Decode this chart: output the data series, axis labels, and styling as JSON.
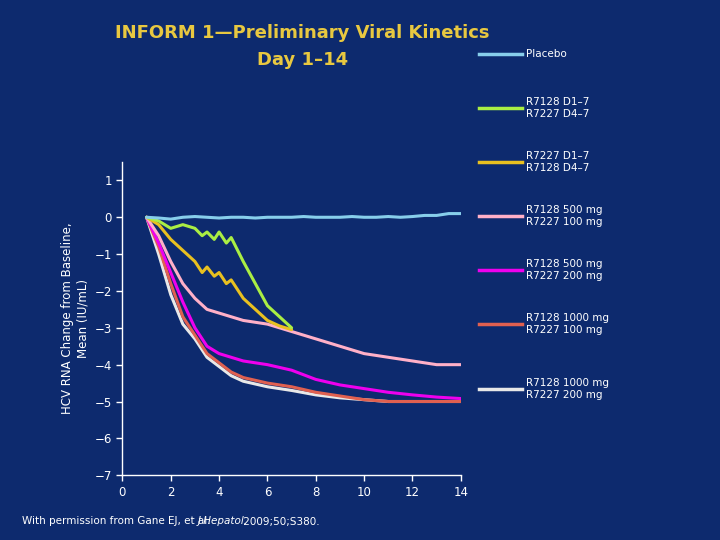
{
  "title_line1": "INFORM 1—Preliminary Viral Kinetics",
  "title_line2": "Day 1–14",
  "ylabel": "HCV RNA Change from Baseline,\nMean (IU/mL)",
  "background_color": "#0d2a6e",
  "title_color": "#e8c840",
  "axis_color": "#ffffff",
  "text_color": "#ffffff",
  "xlim": [
    0,
    14
  ],
  "ylim": [
    -7,
    1.5
  ],
  "xticks": [
    0,
    2,
    4,
    6,
    8,
    10,
    12,
    14
  ],
  "yticks": [
    1,
    0,
    -1,
    -2,
    -3,
    -4,
    -5,
    -6,
    -7
  ],
  "footnote_plain": "With permission from Gane EJ, et al. ",
  "footnote_italic": "J Hepatol.",
  "footnote_plain2": " 2009;50;S380.",
  "series": {
    "placebo": {
      "color": "#87ceeb",
      "label": "Placebo",
      "x": [
        1,
        1.5,
        2,
        2.5,
        3,
        3.5,
        4,
        4.5,
        5,
        5.5,
        6,
        6.5,
        7,
        7.5,
        8,
        8.5,
        9,
        9.5,
        10,
        10.5,
        11,
        11.5,
        12,
        12.5,
        13,
        13.5,
        14
      ],
      "y": [
        0.0,
        -0.02,
        -0.05,
        0.0,
        0.02,
        0.0,
        -0.02,
        0.0,
        0.0,
        -0.02,
        0.0,
        0.0,
        0.0,
        0.02,
        0.0,
        0.0,
        0.0,
        0.02,
        0.0,
        0.0,
        0.02,
        0.0,
        0.02,
        0.05,
        0.05,
        0.1,
        0.1
      ]
    },
    "r7128_d1_7_r7227_d4_7": {
      "color": "#aaee44",
      "label": "R7128 D1–7\nR7227 D4–7",
      "x": [
        1,
        1.5,
        2,
        2.5,
        3,
        3.3,
        3.5,
        3.8,
        4,
        4.3,
        4.5,
        5,
        5.5,
        6,
        6.5,
        7
      ],
      "y": [
        0,
        -0.1,
        -0.3,
        -0.2,
        -0.3,
        -0.5,
        -0.4,
        -0.6,
        -0.4,
        -0.7,
        -0.55,
        -1.2,
        -1.8,
        -2.4,
        -2.7,
        -3.0
      ]
    },
    "r7227_d1_7_r7128_d4_7": {
      "color": "#e8c020",
      "label": "R7227 D1–7\nR7128 D4–7",
      "x": [
        1,
        1.5,
        2,
        2.5,
        3,
        3.3,
        3.5,
        3.8,
        4,
        4.3,
        4.5,
        5,
        5.5,
        6,
        6.5,
        7
      ],
      "y": [
        0,
        -0.2,
        -0.6,
        -0.9,
        -1.2,
        -1.5,
        -1.35,
        -1.6,
        -1.5,
        -1.8,
        -1.7,
        -2.2,
        -2.5,
        -2.8,
        -2.95,
        -3.05
      ]
    },
    "r7128_500_r7227_100": {
      "color": "#ffb0c8",
      "label": "R7128 500 mg\nR7227 100 mg",
      "x": [
        1,
        1.5,
        2,
        2.5,
        3,
        3.5,
        4,
        4.5,
        5,
        6,
        7,
        8,
        9,
        10,
        11,
        12,
        13,
        14
      ],
      "y": [
        0,
        -0.5,
        -1.2,
        -1.8,
        -2.2,
        -2.5,
        -2.6,
        -2.7,
        -2.8,
        -2.9,
        -3.1,
        -3.3,
        -3.5,
        -3.7,
        -3.8,
        -3.9,
        -4.0,
        -4.0
      ]
    },
    "r7128_500_r7227_200": {
      "color": "#ee00ee",
      "label": "R7128 500 mg\nR7227 200 mg",
      "x": [
        1,
        1.5,
        2,
        2.5,
        3,
        3.5,
        4,
        4.5,
        5,
        6,
        7,
        8,
        9,
        10,
        11,
        12,
        13,
        14
      ],
      "y": [
        0,
        -0.7,
        -1.5,
        -2.3,
        -3.0,
        -3.5,
        -3.7,
        -3.8,
        -3.9,
        -4.0,
        -4.15,
        -4.4,
        -4.55,
        -4.65,
        -4.75,
        -4.82,
        -4.88,
        -4.92
      ]
    },
    "r7128_1000_r7227_100": {
      "color": "#e06050",
      "label": "R7128 1000 mg\nR7227 100 mg",
      "x": [
        1,
        1.5,
        2,
        2.5,
        3,
        3.5,
        4,
        4.5,
        5,
        6,
        7,
        8,
        9,
        10,
        11,
        12,
        13,
        14
      ],
      "y": [
        0,
        -0.8,
        -1.8,
        -2.7,
        -3.2,
        -3.7,
        -3.95,
        -4.2,
        -4.35,
        -4.5,
        -4.6,
        -4.75,
        -4.85,
        -4.95,
        -5.0,
        -5.0,
        -5.0,
        -5.0
      ]
    },
    "r7128_1000_r7227_200": {
      "color": "#e8e8e8",
      "label": "R7128 1000 mg\nR7227 200 mg",
      "x": [
        1,
        1.5,
        2,
        2.5,
        3,
        3.5,
        4,
        4.5,
        5,
        6,
        7,
        8,
        9,
        10,
        11,
        12,
        13,
        14
      ],
      "y": [
        0,
        -1.0,
        -2.1,
        -2.9,
        -3.3,
        -3.8,
        -4.05,
        -4.3,
        -4.45,
        -4.6,
        -4.7,
        -4.82,
        -4.9,
        -4.95,
        -5.0,
        -5.0,
        -5.0,
        -5.0
      ]
    }
  },
  "legend_entries_order": [
    "placebo",
    "r7128_d1_7_r7227_d4_7",
    "r7227_d1_7_r7128_d4_7",
    "r7128_500_r7227_100",
    "r7128_500_r7227_200",
    "r7128_1000_r7227_100",
    "r7128_1000_r7227_200"
  ]
}
